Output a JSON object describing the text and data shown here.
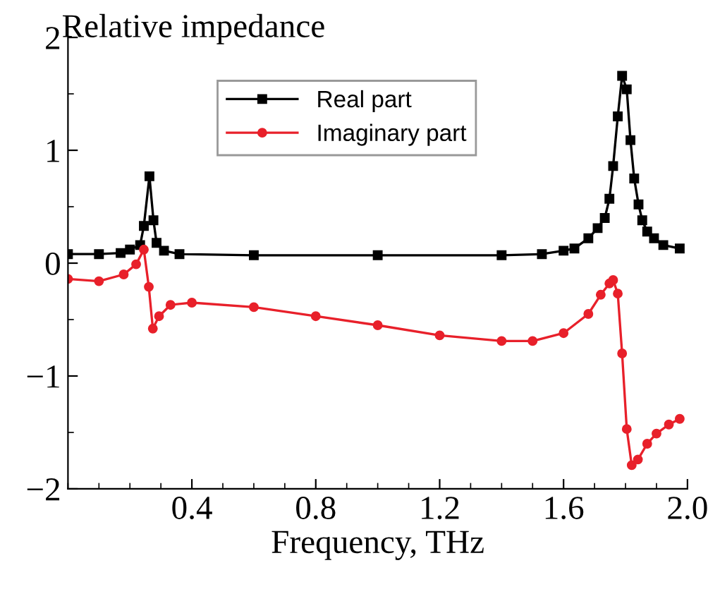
{
  "chart_data": {
    "type": "line",
    "xlabel": "Frequency, THz",
    "ylabel": "Relative impedance",
    "xlim": [
      0,
      2.0
    ],
    "ylim": [
      -2,
      2
    ],
    "xticks": [
      0.4,
      0.8,
      1.2,
      1.6,
      {
        "value": 2.0,
        "label": "2.0"
      }
    ],
    "yticks": [
      {
        "value": -2,
        "label": "−2"
      },
      {
        "value": -1,
        "label": "−1"
      },
      0,
      1,
      2
    ],
    "grid": false,
    "legend": "top",
    "series": [
      {
        "name": "Real part",
        "color": "#000000",
        "marker": "square",
        "x": [
          0,
          0.1,
          0.17,
          0.2,
          0.233,
          0.245,
          0.263,
          0.276,
          0.286,
          0.31,
          0.36,
          0.6,
          1.0,
          1.4,
          1.53,
          1.6,
          1.635,
          1.68,
          1.71,
          1.733,
          1.748,
          1.76,
          1.775,
          1.789,
          1.804,
          1.816,
          1.828,
          1.842,
          1.854,
          1.87,
          1.892,
          1.922,
          1.975
        ],
        "values": [
          0.08,
          0.08,
          0.09,
          0.12,
          0.16,
          0.33,
          0.77,
          0.38,
          0.18,
          0.11,
          0.08,
          0.07,
          0.07,
          0.07,
          0.08,
          0.11,
          0.13,
          0.22,
          0.31,
          0.4,
          0.57,
          0.86,
          1.3,
          1.66,
          1.54,
          1.09,
          0.75,
          0.52,
          0.38,
          0.28,
          0.22,
          0.16,
          0.13
        ]
      },
      {
        "name": "Imaginary part",
        "color": "#e8202a",
        "marker": "circle",
        "x": [
          0,
          0.1,
          0.18,
          0.22,
          0.245,
          0.261,
          0.274,
          0.294,
          0.331,
          0.4,
          0.6,
          0.8,
          1.0,
          1.2,
          1.4,
          1.5,
          1.6,
          1.68,
          1.72,
          1.748,
          1.76,
          1.775,
          1.789,
          1.804,
          1.82,
          1.84,
          1.87,
          1.9,
          1.94,
          1.975
        ],
        "values": [
          -0.14,
          -0.16,
          -0.1,
          -0.01,
          0.12,
          -0.21,
          -0.58,
          -0.47,
          -0.37,
          -0.35,
          -0.39,
          -0.47,
          -0.55,
          -0.64,
          -0.69,
          -0.69,
          -0.62,
          -0.45,
          -0.28,
          -0.18,
          -0.15,
          -0.27,
          -0.8,
          -1.47,
          -1.79,
          -1.74,
          -1.6,
          -1.51,
          -1.43,
          -1.38
        ]
      }
    ]
  }
}
